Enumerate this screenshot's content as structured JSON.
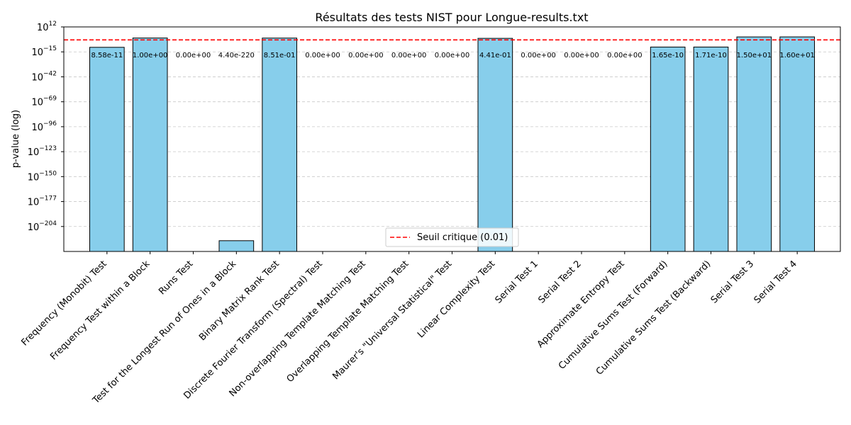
{
  "chart_data": {
    "type": "bar",
    "title": "Résultats des tests NIST pour Longue-results.txt",
    "xlabel": "",
    "ylabel": "p-value (log)",
    "y_scale": "log",
    "ylim_exponents": [
      -231,
      12
    ],
    "ytick_exponents": [
      12,
      -15,
      -42,
      -69,
      -96,
      -123,
      -150,
      -177,
      -204
    ],
    "grid": "y-dashed",
    "bar_color": "#87ceeb",
    "edge_color": "#000000",
    "categories": [
      "Frequency (Monobit) Test",
      "Frequency Test within a Block",
      "Runs Test",
      "Test for the Longest Run of Ones in a Block",
      "Binary Matrix Rank Test",
      "Discrete Fourier Transform (Spectral) Test",
      "Non-overlapping Template Matching Test",
      "Overlapping Template Matching Test",
      "Maurer's \"Universal Statistical\" Test",
      "Linear Complexity Test",
      "Serial Test 1",
      "Serial Test 2",
      "Approximate Entropy Test",
      "Cumulative Sums Test (Forward)",
      "Cumulative Sums Test (Backward)",
      "Serial Test 3",
      "Serial Test 4"
    ],
    "values": [
      8.58e-11,
      1.0,
      0,
      4.4e-220,
      0.851,
      0,
      0,
      0,
      0,
      0.441,
      0,
      0,
      0,
      1.65e-10,
      1.71e-10,
      15.0,
      16.0
    ],
    "value_labels": [
      "8.58e-11",
      "1.00e+00",
      "0.00e+00",
      "4.40e-220",
      "8.51e-01",
      "0.00e+00",
      "0.00e+00",
      "0.00e+00",
      "0.00e+00",
      "4.41e-01",
      "0.00e+00",
      "0.00e+00",
      "0.00e+00",
      "1.65e-10",
      "1.71e-10",
      "1.50e+01",
      "1.60e+01"
    ],
    "threshold": {
      "value": 0.01,
      "label": "Seuil critique (0.01)",
      "color": "#ff0000"
    },
    "legend_placement": "lower-center"
  }
}
